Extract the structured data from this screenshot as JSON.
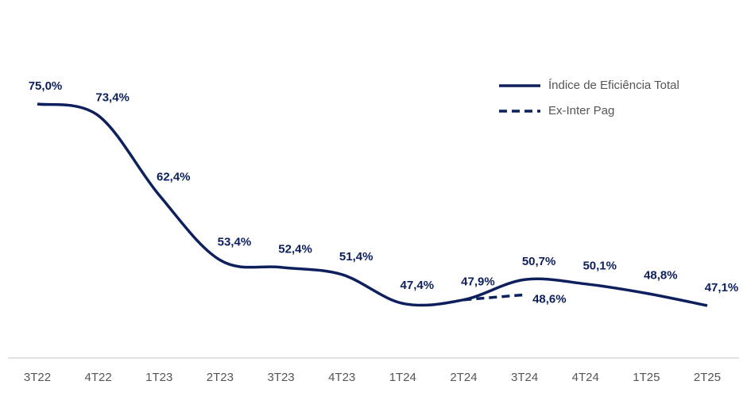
{
  "chart_data": {
    "type": "line",
    "categories": [
      "3T22",
      "4T22",
      "1T23",
      "2T23",
      "3T23",
      "4T23",
      "1T24",
      "2T24",
      "3T24",
      "4T24",
      "1T25",
      "2T25"
    ],
    "series": [
      {
        "name": "Índice de Eficiência Total",
        "color": "#0d1f5c",
        "dash": false,
        "values": [
          75.0,
          73.4,
          62.4,
          53.4,
          52.4,
          51.4,
          47.4,
          47.9,
          50.7,
          50.1,
          48.8,
          47.1
        ],
        "value_labels": [
          "75,0%",
          "73,4%",
          "62,4%",
          "53,4%",
          "52,4%",
          "51,4%",
          "47,4%",
          "47,9%",
          "50,7%",
          "50,1%",
          "48,8%",
          "47,1%"
        ]
      },
      {
        "name": "Ex-Inter Pag",
        "color": "#0d1f5c",
        "dash": true,
        "values": [
          null,
          null,
          null,
          null,
          null,
          null,
          null,
          47.9,
          48.6,
          null,
          null,
          null
        ],
        "value_labels": [
          null,
          null,
          null,
          null,
          null,
          null,
          null,
          null,
          "48,6%",
          null,
          null,
          null
        ]
      }
    ],
    "legend": "top-right"
  }
}
